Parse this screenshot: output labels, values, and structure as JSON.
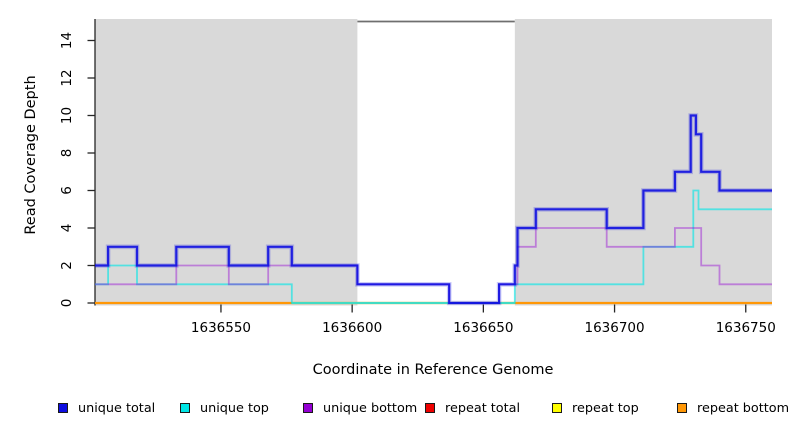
{
  "chart_data": {
    "type": "line",
    "subtype": "step-coverage",
    "title": "",
    "xlabel": "Coordinate in Reference Genome",
    "ylabel": "Read Coverage Depth",
    "xlim": [
      1636502,
      1636760
    ],
    "ylim": [
      0,
      15
    ],
    "x_ticks": [
      1636550,
      1636600,
      1636650,
      1636700,
      1636750
    ],
    "y_ticks": [
      0,
      2,
      4,
      6,
      8,
      10,
      12,
      14
    ],
    "grid": "off",
    "legend_position": "bottom",
    "plot_background_color": "#ffffff",
    "region_gray_color": "#d9d9d9",
    "gap_top_line_color": "#6f6f6f",
    "baseline_blend_color": "#92cf9b",
    "axis_color": "#262626",
    "background_regions": [
      {
        "name": "gray-left",
        "x0": 1636502,
        "x1": 1636602,
        "fill": "gray"
      },
      {
        "name": "white-gap",
        "x0": 1636602,
        "x1": 1636662,
        "fill": "white",
        "top_line": true
      },
      {
        "name": "gray-right",
        "x0": 1636662,
        "x1": 1636760,
        "fill": "gray"
      }
    ],
    "series": [
      {
        "name": "unique total",
        "color": "#0d0de0",
        "steps": [
          [
            1636502,
            2
          ],
          [
            1636507,
            3
          ],
          [
            1636518,
            2
          ],
          [
            1636533,
            3
          ],
          [
            1636553,
            2
          ],
          [
            1636568,
            3
          ],
          [
            1636577,
            2
          ],
          [
            1636602,
            1
          ],
          [
            1636637,
            0
          ],
          [
            1636656,
            1
          ],
          [
            1636662,
            2
          ],
          [
            1636663,
            4
          ],
          [
            1636670,
            5
          ],
          [
            1636697,
            4
          ],
          [
            1636711,
            6
          ],
          [
            1636723,
            7
          ],
          [
            1636729,
            10
          ],
          [
            1636731,
            9
          ],
          [
            1636733,
            7
          ],
          [
            1636740,
            6
          ],
          [
            1636760,
            6
          ]
        ]
      },
      {
        "name": "unique top",
        "color": "#00e5e5",
        "steps": [
          [
            1636502,
            1
          ],
          [
            1636507,
            2
          ],
          [
            1636518,
            1
          ],
          [
            1636577,
            0
          ],
          [
            1636662,
            1
          ],
          [
            1636711,
            3
          ],
          [
            1636730,
            6
          ],
          [
            1636732,
            5
          ],
          [
            1636760,
            5
          ]
        ]
      },
      {
        "name": "unique bottom",
        "color": "#9400d3",
        "steps": [
          [
            1636502,
            1
          ],
          [
            1636533,
            2
          ],
          [
            1636553,
            1
          ],
          [
            1636568,
            2
          ],
          [
            1636602,
            1
          ],
          [
            1636637,
            0
          ],
          [
            1636656,
            1
          ],
          [
            1636663,
            3
          ],
          [
            1636670,
            4
          ],
          [
            1636697,
            3
          ],
          [
            1636723,
            4
          ],
          [
            1636733,
            2
          ],
          [
            1636740,
            1
          ],
          [
            1636760,
            1
          ]
        ]
      },
      {
        "name": "repeat total",
        "color": "#ee0000",
        "steps": [
          [
            1636502,
            0
          ],
          [
            1636760,
            0
          ]
        ]
      },
      {
        "name": "repeat top",
        "color": "#ffff00",
        "steps": [
          [
            1636502,
            0
          ],
          [
            1636760,
            0
          ]
        ]
      },
      {
        "name": "repeat bottom",
        "color": "#ff9706",
        "steps": [
          [
            1636502,
            0
          ],
          [
            1636760,
            0
          ]
        ]
      }
    ],
    "legend_labels": [
      "unique total",
      "unique top",
      "unique bottom",
      "repeat total",
      "repeat top",
      "repeat bottom"
    ]
  }
}
